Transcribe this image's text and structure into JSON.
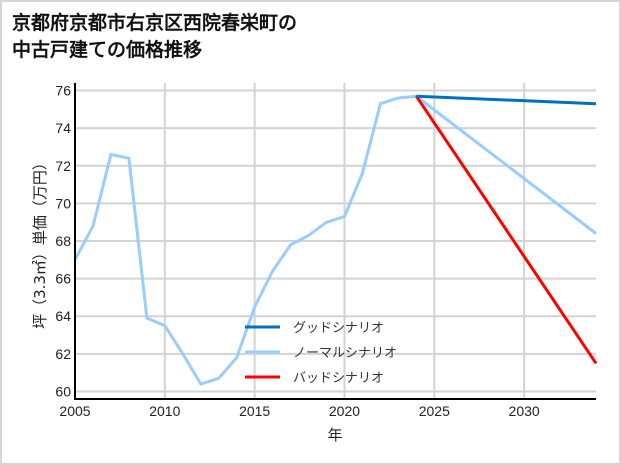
{
  "title": {
    "line1": "京都府京都市右京区西院春栄町の",
    "line2": "中古戸建ての価格推移"
  },
  "chart_data": {
    "type": "line",
    "title": "京都府京都市右京区西院春栄町の中古戸建ての価格推移",
    "xlabel": "年",
    "ylabel": "坪（3.3㎡）単価（万円）",
    "xlim": [
      2005,
      2034
    ],
    "ylim": [
      59.6,
      76.4
    ],
    "xticks": [
      2005,
      2010,
      2015,
      2020,
      2025,
      2030
    ],
    "yticks": [
      60,
      62,
      64,
      66,
      68,
      70,
      72,
      74,
      76
    ],
    "grid": true,
    "legend_position": "lower center",
    "series": [
      {
        "name": "グッドシナリオ",
        "color": "#0070c0",
        "x": [
          2024,
          2034
        ],
        "values": [
          75.7,
          75.3
        ]
      },
      {
        "name": "ノーマルシナリオ",
        "color": "#99ccff",
        "x": [
          2005,
          2006,
          2007,
          2008,
          2009,
          2010,
          2011,
          2012,
          2013,
          2014,
          2015,
          2016,
          2017,
          2018,
          2019,
          2020,
          2021,
          2022,
          2023,
          2024,
          2034
        ],
        "values": [
          67.0,
          68.8,
          72.6,
          72.4,
          63.9,
          63.5,
          62.0,
          60.4,
          60.7,
          61.8,
          64.5,
          66.4,
          67.8,
          68.3,
          69.0,
          69.3,
          71.6,
          75.3,
          75.6,
          75.7,
          68.4
        ]
      },
      {
        "name": "バッドシナリオ",
        "color": "#ff0000",
        "x": [
          2024,
          2034
        ],
        "values": [
          75.7,
          61.5
        ]
      }
    ]
  }
}
